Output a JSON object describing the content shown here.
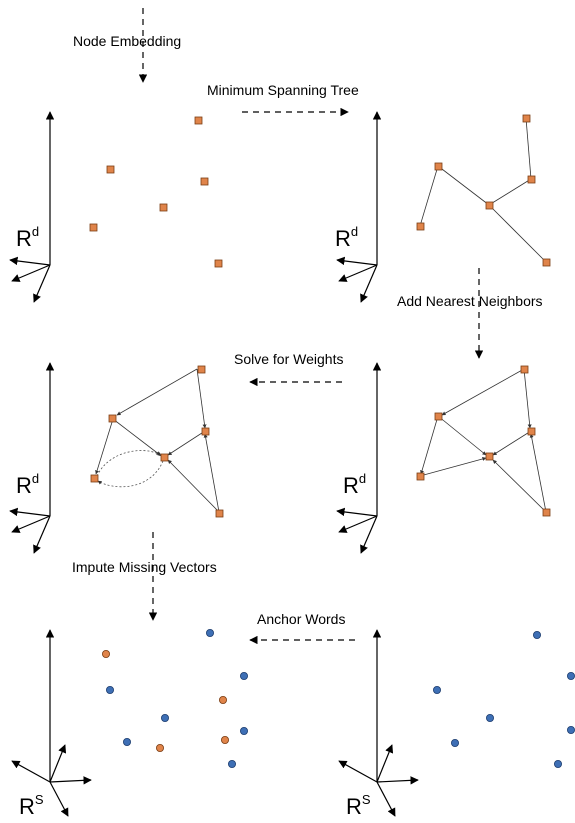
{
  "steps": {
    "node_embedding": "Node Embedding",
    "minimum_spanning_tree": "Minimum Spanning Tree",
    "add_nearest_neighbors": "Add Nearest Neighbors",
    "solve_for_weights": "Solve for Weights",
    "impute_missing_vectors": "Impute Missing Vectors",
    "anchor_words": "Anchor Words"
  },
  "spaces": {
    "embedding_space": "R",
    "embedding_dim": "d",
    "semantic_space": "R",
    "semantic_dim": "S"
  },
  "colors": {
    "known_node": "#e0844a",
    "anchor_node": "#3e6fb5"
  }
}
